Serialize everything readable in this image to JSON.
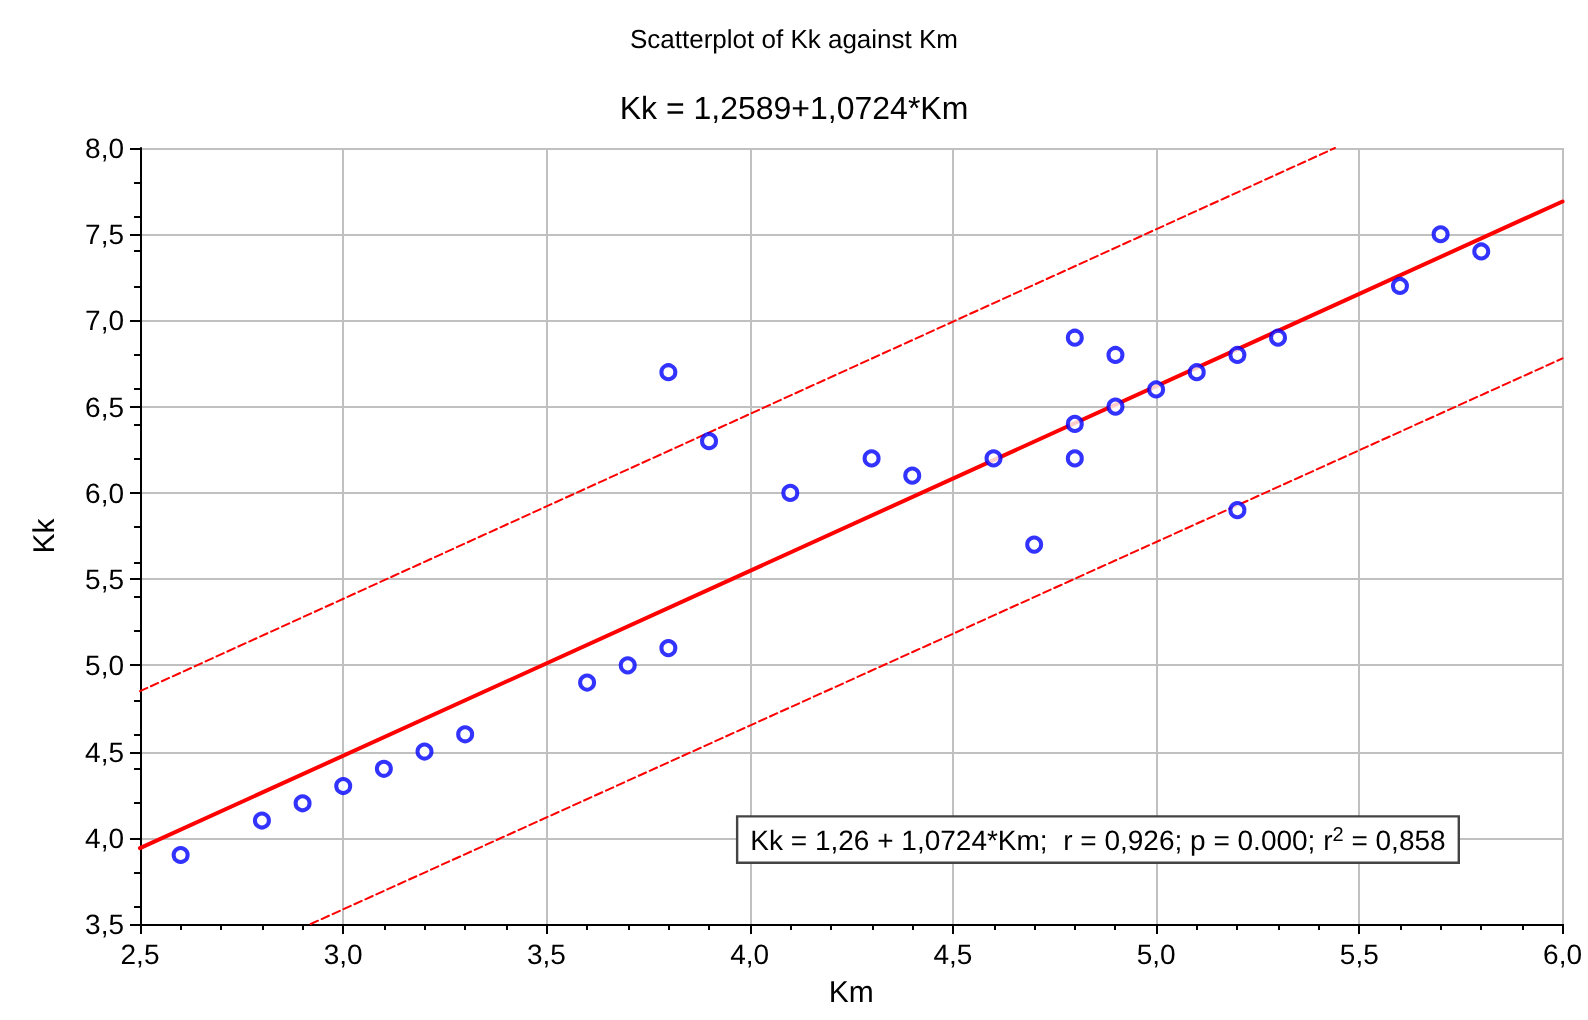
{
  "chart_data": {
    "type": "scatter",
    "title": "Scatterplot of Kk against Km",
    "subtitle": "Kk = 1,2589+1,0724*Km",
    "xlabel": "Km",
    "ylabel": "Kk",
    "xlim": [
      2.5,
      6.0
    ],
    "xticks": [
      {
        "value": 2.5,
        "label": "2,5"
      },
      {
        "value": 3.0,
        "label": "3,0"
      },
      {
        "value": 3.5,
        "label": "3,5"
      },
      {
        "value": 4.0,
        "label": "4,0"
      },
      {
        "value": 4.5,
        "label": "4,5"
      },
      {
        "value": 5.0,
        "label": "5,0"
      },
      {
        "value": 5.5,
        "label": "5,5"
      },
      {
        "value": 6.0,
        "label": "6,0"
      }
    ],
    "ylim": [
      3.5,
      8.0
    ],
    "yticks": [
      {
        "value": 3.5,
        "label": "3,5"
      },
      {
        "value": 4.0,
        "label": "4,0"
      },
      {
        "value": 4.5,
        "label": "4,5"
      },
      {
        "value": 5.0,
        "label": "5,0"
      },
      {
        "value": 5.5,
        "label": "5,5"
      },
      {
        "value": 6.0,
        "label": "6,0"
      },
      {
        "value": 6.5,
        "label": "6,5"
      },
      {
        "value": 7.0,
        "label": "7,0"
      },
      {
        "value": 7.5,
        "label": "7,5"
      },
      {
        "value": 8.0,
        "label": "8,0"
      }
    ],
    "grid": true,
    "marker": "circle",
    "series": [
      {
        "color": "#0000ff",
        "x": [
          2.6,
          2.8,
          2.9,
          3.0,
          3.1,
          3.2,
          3.3,
          3.6,
          3.7,
          3.8,
          3.8,
          3.9,
          4.1,
          4.3,
          4.4,
          4.6,
          4.7,
          4.8,
          4.8,
          4.8,
          4.9,
          4.9,
          5.0,
          5.1,
          5.2,
          5.2,
          5.3,
          5.6,
          5.7,
          5.8
        ],
        "values": [
          3.9,
          4.1,
          4.2,
          4.3,
          4.4,
          4.5,
          4.6,
          4.9,
          5.0,
          5.1,
          6.7,
          6.3,
          6.0,
          6.2,
          6.1,
          6.2,
          5.7,
          6.9,
          6.4,
          6.2,
          6.8,
          6.5,
          6.6,
          6.7,
          6.8,
          5.9,
          6.9,
          7.2,
          7.5,
          7.4
        ]
      },
      {
        "type": "line",
        "color": "#ff0000",
        "line_style": "solid",
        "marker": "none",
        "x": [
          2.5,
          6.0
        ],
        "values": [
          3.94,
          7.69
        ]
      },
      {
        "type": "line",
        "color": "#ff0000",
        "line_style": "dashed",
        "marker": "none",
        "x": [
          2.5,
          5.44
        ],
        "values": [
          4.85,
          8.0
        ]
      },
      {
        "type": "line",
        "color": "#ff0000",
        "line_style": "dashed",
        "marker": "none",
        "x": [
          2.92,
          6.0
        ],
        "values": [
          3.5,
          6.78
        ]
      }
    ],
    "annotations": [
      "Kk = 1,26 + 1,0724*Km;  r = 0,926; p = 0.000; r$^{2}$ = 0,858"
    ]
  }
}
